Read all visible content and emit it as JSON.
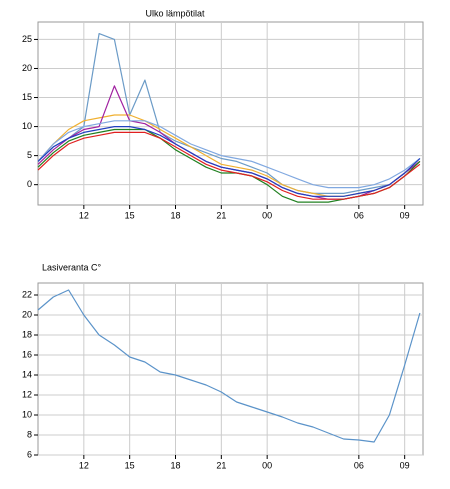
{
  "chart_data": [
    {
      "type": "line",
      "title": "Ulko lämpötilat",
      "x": [
        9,
        10,
        11,
        12,
        13,
        14,
        15,
        16,
        17,
        18,
        19,
        20,
        21,
        22,
        23,
        24,
        25,
        26,
        27,
        28,
        29,
        30,
        31,
        32,
        33,
        34
      ],
      "xlim": [
        9,
        34.2
      ],
      "xticks": [
        12,
        15,
        18,
        21,
        {
          "value": 24,
          "label": "00"
        },
        {
          "value": 30,
          "label": "06"
        },
        {
          "value": 33,
          "label": "09"
        }
      ],
      "ylim": [
        -3.5,
        28
      ],
      "yticks": [
        0,
        5,
        10,
        15,
        20,
        25
      ],
      "grid": true,
      "series": [
        {
          "color": "#6b9bc7",
          "values": [
            4,
            6.5,
            8,
            10,
            26,
            25,
            12,
            18,
            9,
            7.5,
            6.5,
            5.5,
            4.5,
            4,
            3,
            2,
            0,
            -1,
            -1.5,
            -1.5,
            -1.5,
            -1,
            -0.5,
            0,
            2,
            4.5
          ]
        },
        {
          "color": "#f0b030",
          "values": [
            4,
            7,
            9.5,
            11,
            11.5,
            12,
            12,
            11,
            9.5,
            8,
            6.5,
            5,
            3.5,
            3,
            2.5,
            1.5,
            0,
            -1,
            -1.5,
            -2,
            -2,
            -1.5,
            -1,
            0,
            2,
            4
          ]
        },
        {
          "color": "#a020a0",
          "values": [
            3.5,
            6,
            8,
            9.5,
            10,
            17,
            11,
            10.5,
            9,
            7,
            5.5,
            4,
            3,
            2.5,
            2,
            1,
            -0.5,
            -1.5,
            -2,
            -2.5,
            -2.5,
            -2,
            -1,
            0,
            2,
            4
          ]
        },
        {
          "color": "#80a8e0",
          "values": [
            4,
            7,
            9,
            10,
            10.5,
            11,
            11,
            11,
            10,
            8.5,
            7,
            6,
            5,
            4.5,
            4,
            3,
            2,
            1,
            0,
            -0.5,
            -0.5,
            -0.5,
            0,
            1,
            2.5,
            4.5
          ]
        },
        {
          "color": "#208020",
          "values": [
            3,
            5.5,
            7.5,
            8.5,
            9,
            9.5,
            9.5,
            9.5,
            8,
            6,
            4.5,
            3,
            2,
            2,
            1.5,
            0,
            -2,
            -3,
            -3,
            -3,
            -2.5,
            -2,
            -1.5,
            -0.5,
            1.5,
            4
          ]
        },
        {
          "color": "#e02020",
          "values": [
            2.5,
            5,
            7,
            8,
            8.5,
            9,
            9,
            9,
            8,
            6.5,
            5,
            3.5,
            2.5,
            2,
            1.5,
            0.5,
            -1,
            -2,
            -2.5,
            -2.5,
            -2.5,
            -2,
            -1.5,
            -0.5,
            1.5,
            3.5
          ]
        },
        {
          "color": "#2040c0",
          "values": [
            4,
            6.5,
            8,
            9,
            9.5,
            10,
            10,
            9.5,
            8.5,
            7,
            5.5,
            4,
            3,
            2.5,
            2,
            1,
            -0.5,
            -1.5,
            -2,
            -2,
            -2,
            -1.5,
            -1,
            0,
            2,
            4.5
          ]
        }
      ]
    },
    {
      "type": "line",
      "title": "Lasiveranta C°",
      "x": [
        9,
        10,
        11,
        12,
        13,
        14,
        15,
        16,
        17,
        18,
        19,
        20,
        21,
        22,
        23,
        24,
        25,
        26,
        27,
        28,
        29,
        30,
        31,
        32,
        33,
        34
      ],
      "xlim": [
        9,
        34.2
      ],
      "xticks": [
        12,
        15,
        18,
        21,
        {
          "value": 24,
          "label": "00"
        },
        {
          "value": 30,
          "label": "06"
        },
        {
          "value": 33,
          "label": "09"
        }
      ],
      "ylim": [
        6,
        23.2
      ],
      "yticks": [
        6,
        8,
        10,
        12,
        14,
        16,
        18,
        20,
        22
      ],
      "grid": true,
      "series": [
        {
          "color": "#5b93c9",
          "values": [
            20.5,
            21.8,
            22.5,
            20,
            18,
            17,
            15.8,
            15.3,
            14.3,
            14,
            13.5,
            13,
            12.3,
            11.3,
            10.8,
            10.3,
            9.8,
            9.2,
            8.8,
            8.2,
            7.6,
            7.5,
            7.3,
            10,
            15,
            20.2
          ]
        }
      ]
    }
  ]
}
